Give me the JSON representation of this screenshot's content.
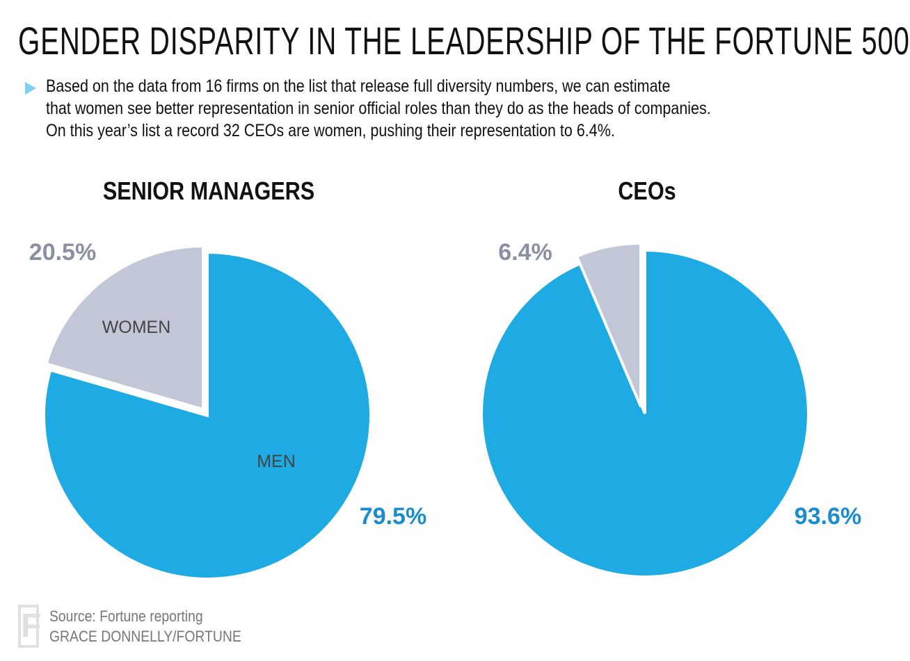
{
  "header": {
    "title": "GENDER DISPARITY IN THE LEADERSHIP OF THE FORTUNE 500",
    "subtitle_lines": [
      "Based on the data from 16 firms on the list that release full diversity numbers, we can estimate",
      "that women see better representation in senior official roles than they do as the heads of companies.",
      "On this year’s list a record 32 CEOs are women, pushing their representation to 6.4%."
    ]
  },
  "colors": {
    "men": "#1EAAE2",
    "women": "#C2C7D8",
    "men_label": "#1A8DCB",
    "women_label": "#8A8FA2"
  },
  "chart_data": [
    {
      "type": "pie",
      "title": "SENIOR MANAGERS",
      "slices": [
        {
          "name": "WOMEN",
          "value": 20.5,
          "label": "20.5%"
        },
        {
          "name": "MEN",
          "value": 79.5,
          "label": "79.5%"
        }
      ]
    },
    {
      "type": "pie",
      "title": "CEOs",
      "slices": [
        {
          "name": "",
          "value": 6.4,
          "label": "6.4%"
        },
        {
          "name": "",
          "value": 93.6,
          "label": "93.6%"
        }
      ]
    }
  ],
  "footer": {
    "logo": "F",
    "source": "Source: Fortune reporting",
    "credit": "GRACE DONNELLY/FORTUNE"
  }
}
